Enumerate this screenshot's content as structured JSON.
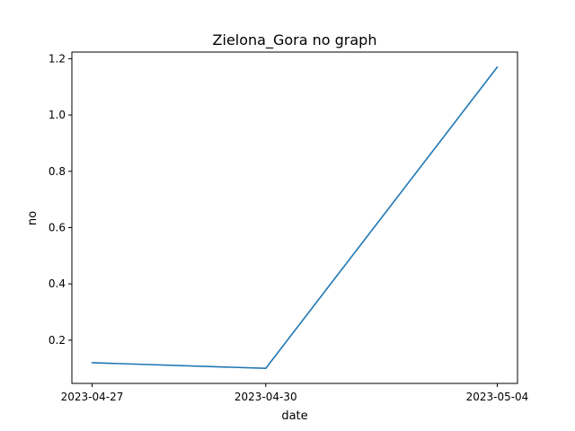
{
  "chart_data": {
    "type": "line",
    "title": "Zielona_Gora no graph",
    "xlabel": "date",
    "ylabel": "no",
    "x": [
      "2023-04-27",
      "2023-04-30",
      "2023-05-04"
    ],
    "x_tick_labels": [
      "2023-04-27",
      "2023-04-30",
      "2023-05-04"
    ],
    "series": [
      {
        "values": [
          0.12,
          0.1,
          1.17
        ],
        "color": "#1f77b4"
      }
    ],
    "y_ticks": [
      0.2,
      0.4,
      0.6,
      0.8,
      1.0,
      1.2
    ],
    "y_tick_labels": [
      "0.2",
      "0.4",
      "0.6",
      "0.8",
      "1.0",
      "1.2"
    ],
    "ylim": [
      0.0465,
      1.2235
    ],
    "grid": false,
    "legend": "none"
  }
}
